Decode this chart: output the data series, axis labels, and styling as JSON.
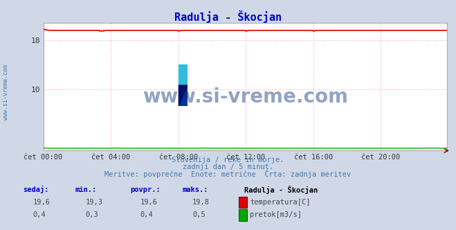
{
  "title": "Radulja - Škocjan",
  "title_color": "#0000cc",
  "bg_color": "#d0d8e8",
  "plot_bg_color": "#ffffff",
  "grid_color": "#ffaaaa",
  "x_tick_labels": [
    "čet 00:00",
    "čet 04:00",
    "čet 08:00",
    "čet 12:00",
    "čet 16:00",
    "čet 20:00"
  ],
  "x_tick_positions": [
    0,
    48,
    96,
    144,
    192,
    240
  ],
  "yticks": [
    10,
    18
  ],
  "ylim": [
    0,
    20.8
  ],
  "xlim": [
    0,
    287
  ],
  "temp_color": "#dd0000",
  "flow_color": "#00aa00",
  "watermark": "www.si-vreme.com",
  "watermark_color": "#8899bb",
  "subtitle1": "Slovenija / reke in morje.",
  "subtitle2": "zadnji dan / 5 minut.",
  "subtitle3": "Meritve: povprečne  Enote: metrične  Črta: zadnja meritev",
  "subtitle_color": "#4477aa",
  "legend_title": "Radulja - Škocjan",
  "stats_label_color": "#0000cc",
  "stats_value_color": "#444444",
  "side_label": "www.si-vreme.com",
  "side_label_color": "#4477aa",
  "n_points": 288,
  "temp_vals": [
    "19,6",
    "19,3",
    "19,6",
    "19,8"
  ],
  "flow_vals": [
    "0,4",
    "0,3",
    "0,4",
    "0,5"
  ],
  "headers": [
    "sedaj:",
    "min.:",
    "povpr.:",
    "maks.:"
  ]
}
